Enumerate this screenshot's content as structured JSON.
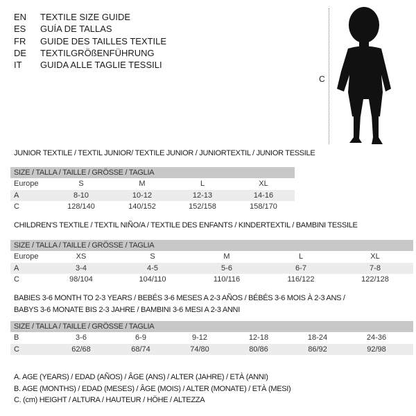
{
  "languages": [
    {
      "code": "EN",
      "text": "TEXTILE SIZE GUIDE"
    },
    {
      "code": "ES",
      "text": "GUÍA DE TALLAS"
    },
    {
      "code": "FR",
      "text": "GUIDE DES TAILLES TEXTILE"
    },
    {
      "code": "DE",
      "text": "TEXTILGRÖßENFÜHRUNG"
    },
    {
      "code": "IT",
      "text": "GUIDA ALLE TAGLIE TESSILI"
    }
  ],
  "figure": {
    "measure_label": "C",
    "icon": "child-silhouette-icon"
  },
  "tables": [
    {
      "title": [
        "JUNIOR TEXTILE / TEXTIL JUNIOR/ TEXTILE JUNIOR / JUNIORTEXTIL / JUNIOR TESSILE"
      ],
      "header": "SIZE / TALLA / TAILLE / GRÖSSE / TAGLIA",
      "rows": [
        {
          "label": "Europe",
          "values": [
            "S",
            "M",
            "L",
            "XL"
          ]
        },
        {
          "label": "A",
          "values": [
            "8-10",
            "10-12",
            "12-13",
            "14-16"
          ]
        },
        {
          "label": "C",
          "values": [
            "128/140",
            "140/152",
            "152/158",
            "158/170"
          ]
        }
      ]
    },
    {
      "title": [
        "CHILDREN'S TEXTILE / TEXTIL NIÑO/A / TEXTILE DES ENFANTS / KINDERTEXTIL / BAMBINI TESSILE"
      ],
      "header": "SIZE / TALLA / TAILLE / GRÖSSE / TAGLIA",
      "rows": [
        {
          "label": "Europe",
          "values": [
            "XS",
            "S",
            "M",
            "L",
            "XL"
          ]
        },
        {
          "label": "A",
          "values": [
            "3-4",
            "4-5",
            "5-6",
            "6-7",
            "7-8"
          ]
        },
        {
          "label": "C",
          "values": [
            "98/104",
            "104/110",
            "110/116",
            "116/122",
            "122/128"
          ]
        }
      ]
    },
    {
      "title": [
        "BABIES 3-6 MONTH TO 2-3 YEARS / BEBÉS 3-6 MESES A 2-3 AÑOS / BÉBÉS 3-6 MOIS À 2-3 ANS /",
        "BABYS 3-6 MONATE BIS 2-3 JAHRE / BAMBINI 3-6 MESI A 2-3 ANNI"
      ],
      "header": "SIZE / TALLA / TAILLE / GRÖSSE / TAGLIA",
      "rows": [
        {
          "label": "B",
          "values": [
            "3-6",
            "6-9",
            "9-12",
            "12-18",
            "18-24",
            "24-36"
          ]
        },
        {
          "label": "C",
          "values": [
            "62/68",
            "68/74",
            "74/80",
            "80/86",
            "86/92",
            "92/98"
          ]
        }
      ]
    }
  ],
  "legend": [
    "A. AGE (YEARS) / EDAD (AÑOS) / ÂGE (ANS) / ALTER (JAHRE) / ETÀ (ANNI)",
    "B. AGE (MONTHS) / EDAD (MESES) / ÂGE (MOIS) / ALTER (MONATE) / ETÀ (MESI)",
    "C. (cm) HEIGHT / ALTURA / HAUTEUR / HÖHE / ALTEZZA"
  ]
}
